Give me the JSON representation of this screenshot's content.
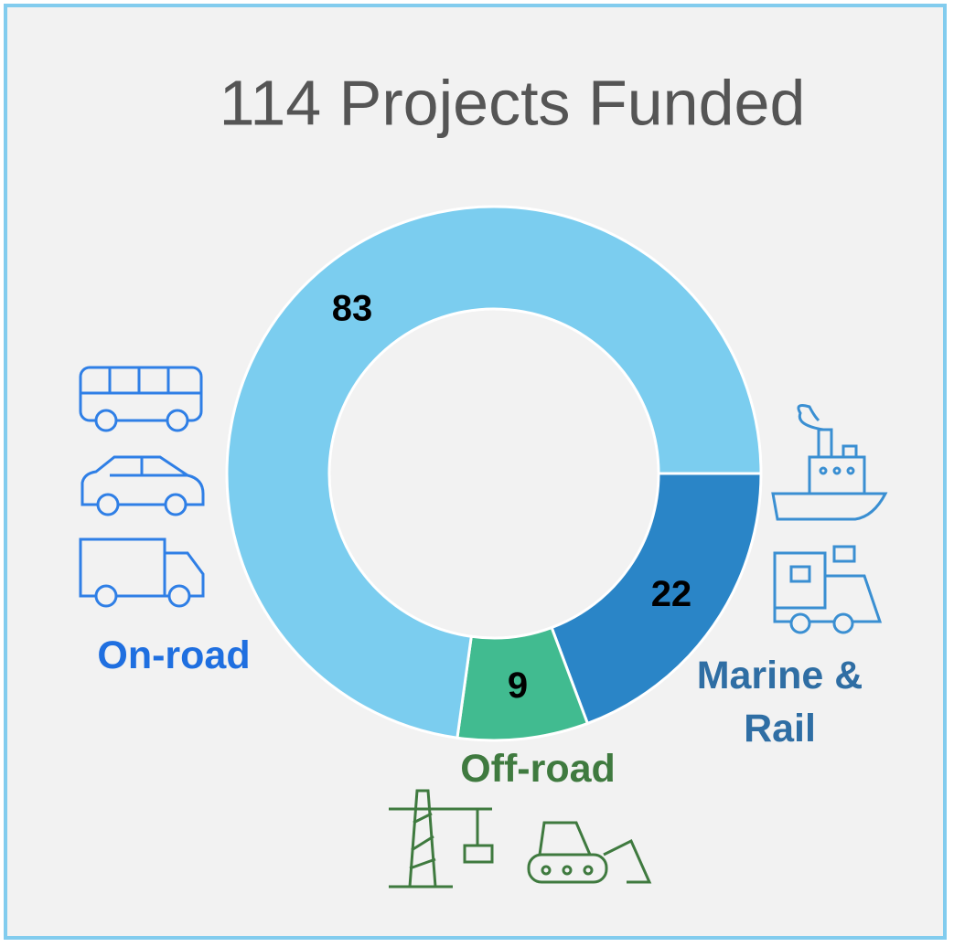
{
  "chart_data": {
    "type": "pie",
    "donut": true,
    "title": "114 Projects Funded",
    "categories": [
      "Marine & Rail",
      "Off-road",
      "On-road"
    ],
    "values": [
      22,
      9,
      83
    ],
    "colors": [
      "#2a85c7",
      "#41bb90",
      "#7bcdef"
    ],
    "label_colors": [
      "#2f6ea4",
      "#3f7a3f",
      "#1f6fe0"
    ]
  }
}
